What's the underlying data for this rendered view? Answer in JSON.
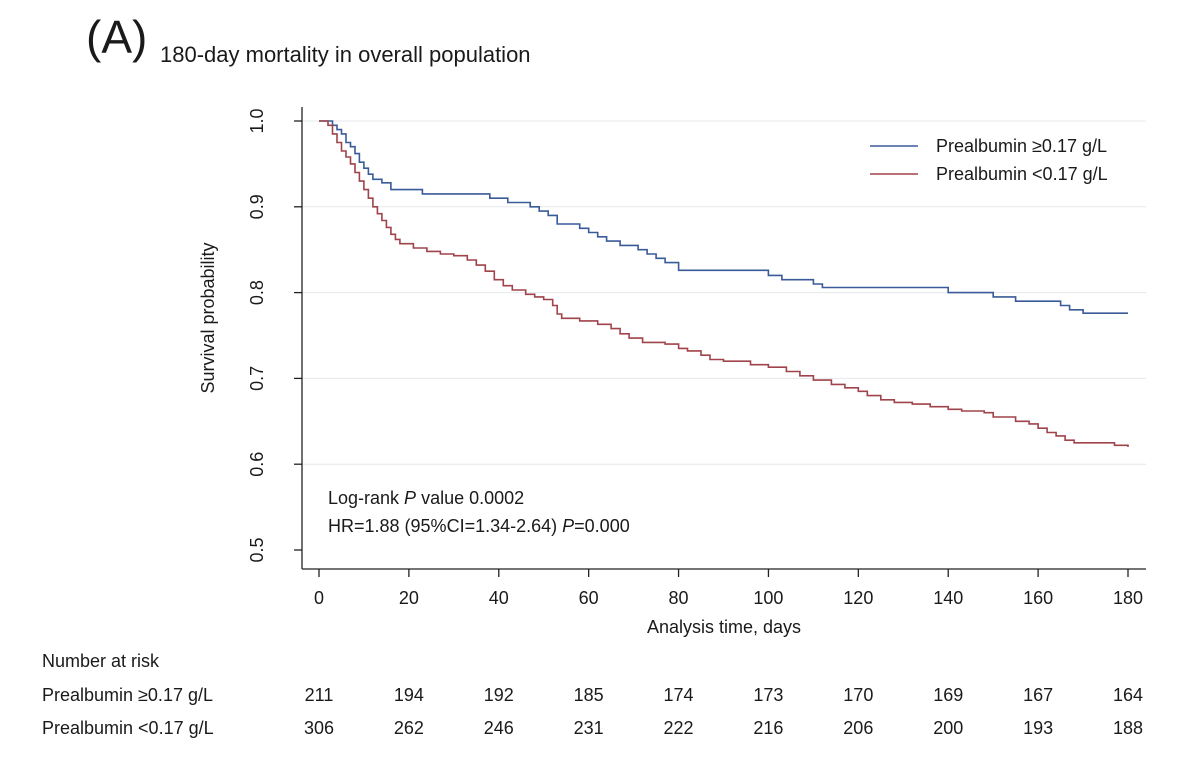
{
  "panel_label": "(A)",
  "chart_data": {
    "type": "line",
    "title": "180-day mortality in overall population",
    "xlabel": "Analysis time, days",
    "ylabel": "Survival probability",
    "xlim": [
      0,
      180
    ],
    "ylim": [
      0.5,
      1.0
    ],
    "x_ticks": [
      0,
      20,
      40,
      60,
      80,
      100,
      120,
      140,
      160,
      180
    ],
    "y_ticks": [
      0.5,
      0.6,
      0.7,
      0.8,
      0.9,
      1.0
    ],
    "y_tick_labels": [
      "0.5",
      "0.6",
      "0.7",
      "0.8",
      "0.9",
      "1.0"
    ],
    "grid": "horizontal",
    "legend_position": "top-right",
    "step": true,
    "series": [
      {
        "name": "Prealbumin ≥0.17 g/L",
        "color": "#3a5b9a",
        "points": [
          [
            0,
            1.0
          ],
          [
            2,
            1.0
          ],
          [
            3,
            0.995
          ],
          [
            4,
            0.99
          ],
          [
            5,
            0.985
          ],
          [
            6,
            0.975
          ],
          [
            7,
            0.97
          ],
          [
            8,
            0.962
          ],
          [
            9,
            0.952
          ],
          [
            10,
            0.945
          ],
          [
            11,
            0.938
          ],
          [
            12,
            0.932
          ],
          [
            14,
            0.928
          ],
          [
            16,
            0.92
          ],
          [
            23,
            0.915
          ],
          [
            38,
            0.91
          ],
          [
            42,
            0.905
          ],
          [
            47,
            0.9
          ],
          [
            49,
            0.895
          ],
          [
            51,
            0.89
          ],
          [
            53,
            0.88
          ],
          [
            58,
            0.875
          ],
          [
            60,
            0.87
          ],
          [
            62,
            0.865
          ],
          [
            64,
            0.86
          ],
          [
            67,
            0.855
          ],
          [
            71,
            0.85
          ],
          [
            73,
            0.845
          ],
          [
            75,
            0.84
          ],
          [
            77,
            0.835
          ],
          [
            80,
            0.826
          ],
          [
            100,
            0.82
          ],
          [
            103,
            0.815
          ],
          [
            110,
            0.81
          ],
          [
            112,
            0.806
          ],
          [
            140,
            0.8
          ],
          [
            150,
            0.795
          ],
          [
            155,
            0.79
          ],
          [
            165,
            0.785
          ],
          [
            167,
            0.78
          ],
          [
            170,
            0.776
          ],
          [
            180,
            0.776
          ]
        ]
      },
      {
        "name": "Prealbumin <0.17 g/L",
        "color": "#a0434a",
        "points": [
          [
            0,
            1.0
          ],
          [
            2,
            0.995
          ],
          [
            3,
            0.985
          ],
          [
            4,
            0.975
          ],
          [
            5,
            0.965
          ],
          [
            6,
            0.958
          ],
          [
            7,
            0.95
          ],
          [
            8,
            0.94
          ],
          [
            9,
            0.93
          ],
          [
            10,
            0.92
          ],
          [
            11,
            0.91
          ],
          [
            12,
            0.9
          ],
          [
            13,
            0.892
          ],
          [
            14,
            0.884
          ],
          [
            15,
            0.876
          ],
          [
            16,
            0.868
          ],
          [
            17,
            0.862
          ],
          [
            18,
            0.857
          ],
          [
            21,
            0.852
          ],
          [
            24,
            0.848
          ],
          [
            27,
            0.845
          ],
          [
            30,
            0.843
          ],
          [
            33,
            0.838
          ],
          [
            35,
            0.832
          ],
          [
            37,
            0.825
          ],
          [
            39,
            0.815
          ],
          [
            41,
            0.808
          ],
          [
            43,
            0.803
          ],
          [
            46,
            0.798
          ],
          [
            48,
            0.795
          ],
          [
            50,
            0.792
          ],
          [
            52,
            0.785
          ],
          [
            53,
            0.775
          ],
          [
            54,
            0.77
          ],
          [
            58,
            0.767
          ],
          [
            62,
            0.763
          ],
          [
            65,
            0.758
          ],
          [
            67,
            0.752
          ],
          [
            69,
            0.747
          ],
          [
            72,
            0.742
          ],
          [
            77,
            0.74
          ],
          [
            80,
            0.735
          ],
          [
            82,
            0.732
          ],
          [
            85,
            0.727
          ],
          [
            87,
            0.722
          ],
          [
            90,
            0.72
          ],
          [
            96,
            0.716
          ],
          [
            100,
            0.713
          ],
          [
            104,
            0.708
          ],
          [
            107,
            0.703
          ],
          [
            110,
            0.698
          ],
          [
            114,
            0.693
          ],
          [
            117,
            0.689
          ],
          [
            120,
            0.685
          ],
          [
            122,
            0.68
          ],
          [
            125,
            0.675
          ],
          [
            128,
            0.672
          ],
          [
            132,
            0.67
          ],
          [
            136,
            0.667
          ],
          [
            140,
            0.664
          ],
          [
            143,
            0.662
          ],
          [
            148,
            0.66
          ],
          [
            150,
            0.655
          ],
          [
            155,
            0.65
          ],
          [
            158,
            0.647
          ],
          [
            160,
            0.642
          ],
          [
            162,
            0.637
          ],
          [
            164,
            0.633
          ],
          [
            166,
            0.628
          ],
          [
            168,
            0.625
          ],
          [
            177,
            0.622
          ],
          [
            180,
            0.62
          ]
        ]
      }
    ],
    "annotations": [
      {
        "parts": [
          {
            "text": "Log-rank "
          },
          {
            "text": "P",
            "italic": true
          },
          {
            "text": " value  0.0002"
          }
        ]
      },
      {
        "parts": [
          {
            "text": "HR=1.88 (95%CI=1.34-2.64) "
          },
          {
            "text": "P",
            "italic": true
          },
          {
            "text": "=0.000"
          }
        ]
      }
    ]
  },
  "risk_table": {
    "heading": "Number at risk",
    "times": [
      0,
      20,
      40,
      60,
      80,
      100,
      120,
      140,
      160,
      180
    ],
    "rows": [
      {
        "label": "Prealbumin ≥0.17 g/L",
        "values": [
          211,
          194,
          192,
          185,
          174,
          173,
          170,
          169,
          167,
          164
        ]
      },
      {
        "label": "Prealbumin <0.17 g/L",
        "values": [
          306,
          262,
          246,
          231,
          222,
          216,
          206,
          200,
          193,
          188
        ]
      }
    ]
  }
}
